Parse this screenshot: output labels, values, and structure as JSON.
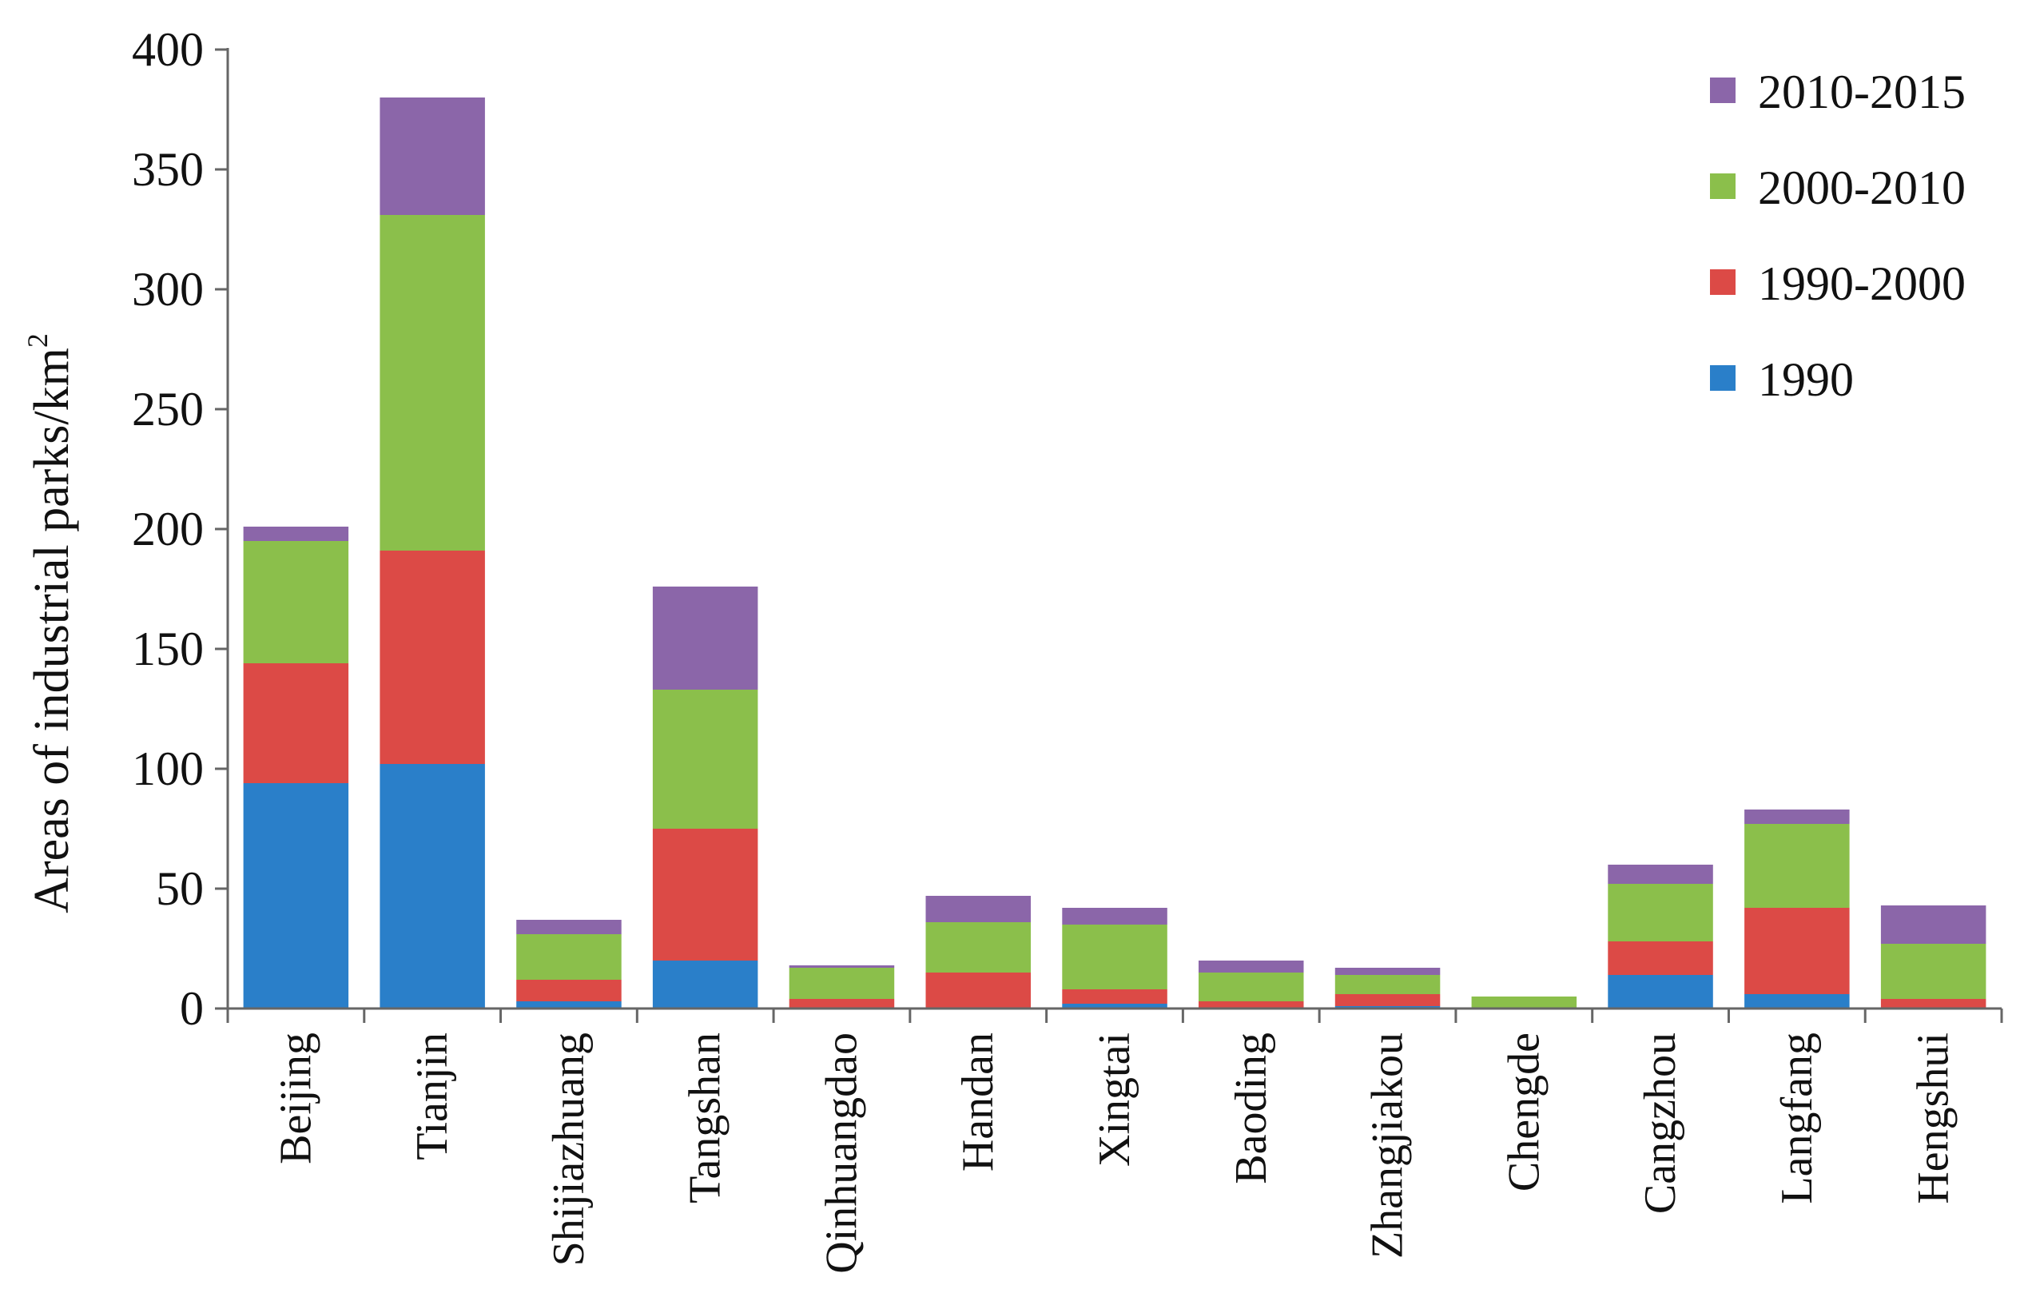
{
  "chart_data": {
    "type": "bar",
    "stacked": true,
    "categories": [
      "Beijing",
      "Tianjin",
      "Shijiazhuang",
      "Tangshan",
      "Qinhuangdao",
      "Handan",
      "Xingtai",
      "Baoding",
      "Zhangjiakou",
      "Chengde",
      "Cangzhou",
      "Langfang",
      "Hengshui"
    ],
    "series": [
      {
        "name": "1990",
        "color": "#2a7fc9",
        "values": [
          94,
          102,
          3,
          20,
          0,
          0,
          2,
          0,
          1,
          0,
          14,
          6,
          0
        ]
      },
      {
        "name": "1990-2000",
        "color": "#dc4a46",
        "values": [
          50,
          89,
          9,
          55,
          4,
          15,
          6,
          3,
          5,
          0,
          14,
          36,
          4
        ]
      },
      {
        "name": "2000-2010",
        "color": "#8bbf4b",
        "values": [
          51,
          140,
          19,
          58,
          13,
          21,
          27,
          12,
          8,
          5,
          24,
          35,
          23
        ]
      },
      {
        "name": "2010-2015",
        "color": "#8b66a9",
        "values": [
          6,
          49,
          6,
          43,
          1,
          11,
          7,
          5,
          3,
          0,
          8,
          6,
          16
        ]
      }
    ],
    "ylabel": "Areas of industrial parks/km",
    "ylabel_superscript": "2",
    "ylim": [
      0,
      400
    ],
    "yticks": [
      "0",
      "50",
      "100",
      "150",
      "200",
      "250",
      "300",
      "350",
      "400"
    ],
    "legend_position": "top-right",
    "legend_order": [
      "2010-2015",
      "2000-2010",
      "1990-2000",
      "1990"
    ],
    "grid": false
  }
}
